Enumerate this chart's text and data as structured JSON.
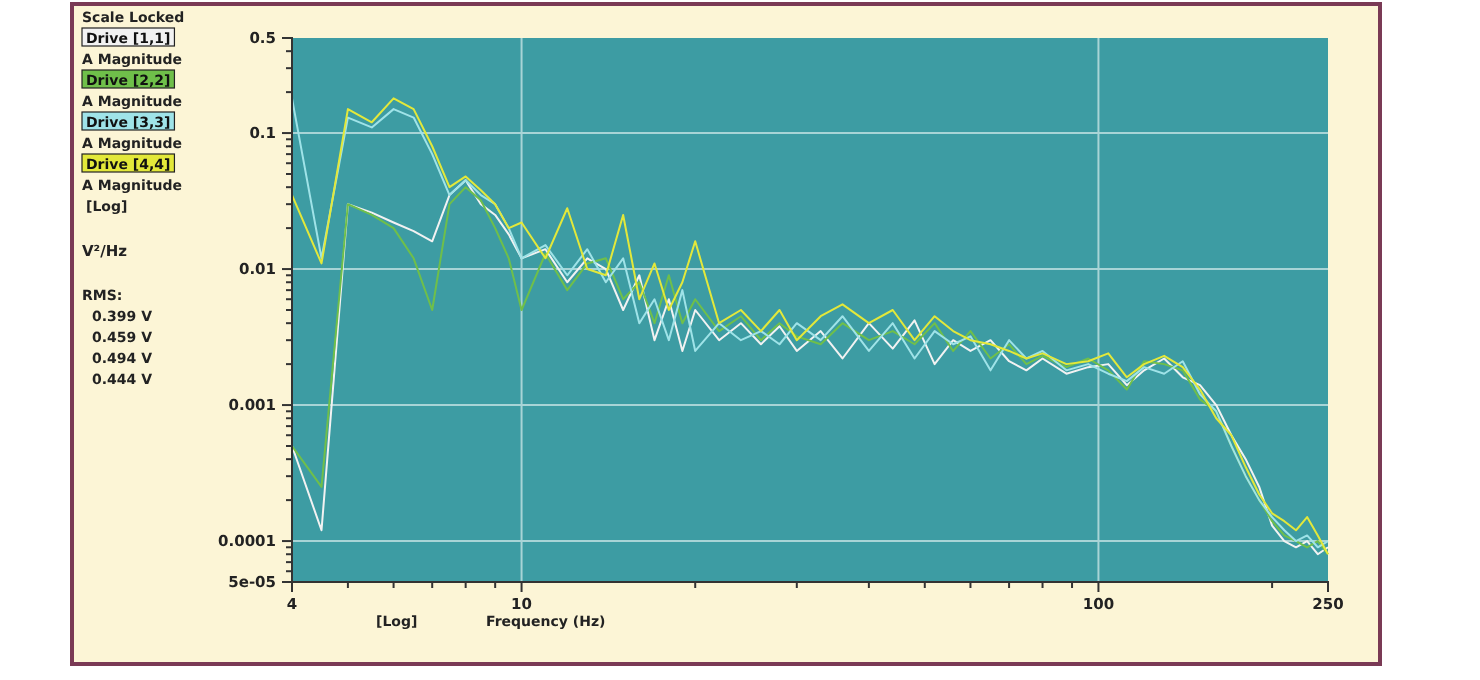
{
  "chart_data": {
    "type": "line",
    "xlabel": "Frequency (Hz)",
    "log": "xy",
    "grid": true,
    "legend": "left",
    "xlim": [
      4,
      250
    ],
    "ylim": [
      5e-05,
      0.5
    ],
    "xticks": [
      4,
      {
        "value": 5,
        "label": null
      },
      {
        "value": 6,
        "label": null
      },
      {
        "value": 7,
        "label": null
      },
      {
        "value": 8,
        "label": null
      },
      {
        "value": 9,
        "label": null
      },
      10,
      {
        "value": 20,
        "label": null
      },
      {
        "value": 30,
        "label": null
      },
      {
        "value": 40,
        "label": null
      },
      {
        "value": 50,
        "label": null
      },
      {
        "value": 60,
        "label": null
      },
      {
        "value": 70,
        "label": null
      },
      {
        "value": 80,
        "label": null
      },
      {
        "value": 90,
        "label": null
      },
      100,
      {
        "value": 200,
        "label": null
      },
      250
    ],
    "yticks": [
      {
        "value": 5e-05,
        "label": "5e-05"
      },
      {
        "value": 6e-05,
        "label": null
      },
      {
        "value": 7e-05,
        "label": null
      },
      {
        "value": 8e-05,
        "label": null
      },
      {
        "value": 9e-05,
        "label": null
      },
      0.0001,
      {
        "value": 0.0002,
        "label": null
      },
      {
        "value": 0.0003,
        "label": null
      },
      {
        "value": 0.0004,
        "label": null
      },
      {
        "value": 0.0005,
        "label": null
      },
      {
        "value": 0.0006,
        "label": null
      },
      {
        "value": 0.0007,
        "label": null
      },
      {
        "value": 0.0008,
        "label": null
      },
      {
        "value": 0.0009,
        "label": null
      },
      0.001,
      {
        "value": 0.002,
        "label": null
      },
      {
        "value": 0.003,
        "label": null
      },
      {
        "value": 0.004,
        "label": null
      },
      {
        "value": 0.005,
        "label": null
      },
      {
        "value": 0.006,
        "label": null
      },
      {
        "value": 0.007,
        "label": null
      },
      {
        "value": 0.008,
        "label": null
      },
      {
        "value": 0.009,
        "label": null
      },
      0.01,
      {
        "value": 0.02,
        "label": null
      },
      {
        "value": 0.03,
        "label": null
      },
      {
        "value": 0.04,
        "label": null
      },
      {
        "value": 0.05,
        "label": null
      },
      {
        "value": 0.06,
        "label": null
      },
      {
        "value": 0.07,
        "label": null
      },
      {
        "value": 0.08,
        "label": null
      },
      {
        "value": 0.09,
        "label": null
      },
      0.1,
      {
        "value": 0.2,
        "label": null
      },
      {
        "value": 0.3,
        "label": null
      },
      {
        "value": 0.4,
        "label": null
      },
      0.5
    ],
    "x": [
      4,
      4.5,
      5,
      5.5,
      6,
      6.5,
      7,
      7.5,
      8,
      8.5,
      9,
      9.5,
      10,
      11,
      12,
      13,
      14,
      15,
      16,
      17,
      18,
      19,
      20,
      22,
      24,
      26,
      28,
      30,
      33,
      36,
      40,
      44,
      48,
      52,
      56,
      60,
      65,
      70,
      75,
      80,
      88,
      96,
      104,
      112,
      120,
      130,
      140,
      150,
      160,
      170,
      180,
      190,
      200,
      210,
      220,
      230,
      240,
      250
    ],
    "annotations": [
      "Scale Locked",
      "A Magnitude",
      "A Magnitude",
      "A Magnitude",
      "A Magnitude",
      "[Log]",
      "V²/Hz",
      "RMS:",
      "0.399 V",
      "0.459 V",
      "0.494 V",
      "0.444 V",
      "[Log]"
    ],
    "series": [
      {
        "name": "Drive [1,1]",
        "color": "#f2f2f2",
        "values": [
          0.0005,
          0.00012,
          0.03,
          0.026,
          0.022,
          0.019,
          0.016,
          0.035,
          0.045,
          0.03,
          0.025,
          0.018,
          0.012,
          0.014,
          0.008,
          0.012,
          0.01,
          0.005,
          0.009,
          0.003,
          0.006,
          0.0025,
          0.005,
          0.003,
          0.004,
          0.0028,
          0.0038,
          0.0025,
          0.0035,
          0.0022,
          0.004,
          0.0026,
          0.0042,
          0.002,
          0.003,
          0.0025,
          0.003,
          0.0021,
          0.0018,
          0.0022,
          0.0017,
          0.0019,
          0.002,
          0.0014,
          0.0018,
          0.0022,
          0.0016,
          0.0014,
          0.001,
          0.0006,
          0.0004,
          0.00025,
          0.00013,
          0.0001,
          9e-05,
          0.0001,
          8e-05,
          9e-05
        ]
      },
      {
        "name": "Drive [2,2]",
        "color": "#6fbf4a",
        "values": [
          0.0005,
          0.00025,
          0.03,
          0.025,
          0.02,
          0.012,
          0.005,
          0.03,
          0.04,
          0.032,
          0.02,
          0.012,
          0.005,
          0.013,
          0.007,
          0.011,
          0.012,
          0.006,
          0.008,
          0.004,
          0.009,
          0.004,
          0.006,
          0.0035,
          0.0045,
          0.003,
          0.004,
          0.0032,
          0.0028,
          0.004,
          0.003,
          0.0035,
          0.0028,
          0.004,
          0.0025,
          0.0035,
          0.0022,
          0.0028,
          0.002,
          0.0023,
          0.0019,
          0.0022,
          0.0018,
          0.0013,
          0.0021,
          0.002,
          0.0018,
          0.0011,
          0.0009,
          0.0005,
          0.0003,
          0.0002,
          0.00014,
          0.00011,
          0.0001,
          9e-05,
          0.0001,
          8e-05
        ]
      },
      {
        "name": "Drive [3,3]",
        "color": "#9fe3e8",
        "values": [
          0.18,
          0.012,
          0.13,
          0.11,
          0.15,
          0.13,
          0.07,
          0.035,
          0.045,
          0.035,
          0.03,
          0.02,
          0.012,
          0.015,
          0.009,
          0.014,
          0.008,
          0.012,
          0.004,
          0.006,
          0.003,
          0.007,
          0.0025,
          0.004,
          0.003,
          0.0035,
          0.0028,
          0.004,
          0.003,
          0.0045,
          0.0025,
          0.004,
          0.0022,
          0.0035,
          0.0028,
          0.0032,
          0.0018,
          0.003,
          0.0022,
          0.0025,
          0.0018,
          0.002,
          0.0017,
          0.0015,
          0.0019,
          0.0017,
          0.0021,
          0.0012,
          0.0009,
          0.0005,
          0.0003,
          0.0002,
          0.00015,
          0.00012,
          0.0001,
          0.00011,
          9e-05,
          0.0001
        ]
      },
      {
        "name": "Drive [4,4]",
        "color": "#e3e83a",
        "values": [
          0.035,
          0.011,
          0.15,
          0.12,
          0.18,
          0.15,
          0.08,
          0.04,
          0.048,
          0.038,
          0.03,
          0.02,
          0.022,
          0.012,
          0.028,
          0.01,
          0.009,
          0.025,
          0.006,
          0.011,
          0.005,
          0.008,
          0.016,
          0.004,
          0.005,
          0.0035,
          0.005,
          0.003,
          0.0045,
          0.0055,
          0.004,
          0.005,
          0.003,
          0.0045,
          0.0035,
          0.003,
          0.0028,
          0.0025,
          0.0022,
          0.0024,
          0.002,
          0.0021,
          0.0024,
          0.0016,
          0.002,
          0.0023,
          0.0019,
          0.0013,
          0.0008,
          0.0006,
          0.00035,
          0.00022,
          0.00016,
          0.00014,
          0.00012,
          0.00015,
          0.00011,
          8e-05
        ]
      }
    ]
  }
}
